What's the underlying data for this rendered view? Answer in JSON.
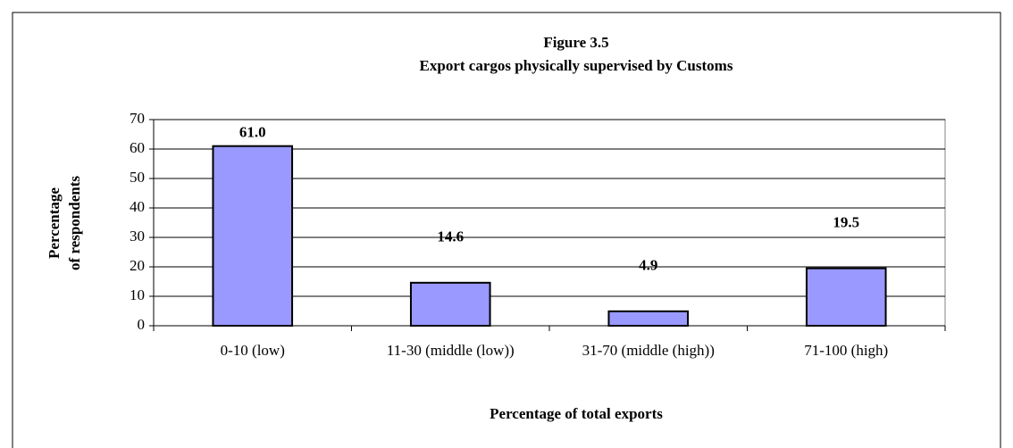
{
  "chart_data": {
    "type": "bar",
    "title": "Figure 3.5",
    "subtitle": "Export cargos physically supervised by Customs",
    "ylabel": [
      "Percentage",
      "of respondents"
    ],
    "xlabel": "Percentage of total exports",
    "categories": [
      "0-10 (low)",
      "11-30 (middle (low))",
      "31-70 (middle (high))",
      "71-100 (high)"
    ],
    "values": [
      61.0,
      14.6,
      4.9,
      19.5
    ],
    "value_labels": [
      "61.0",
      "14.6",
      "4.9",
      "19.5"
    ],
    "color": "#9999ff",
    "ylim": [
      0,
      70
    ],
    "yticks": [
      0,
      10,
      20,
      30,
      40,
      50,
      60,
      70
    ],
    "grid": true
  }
}
